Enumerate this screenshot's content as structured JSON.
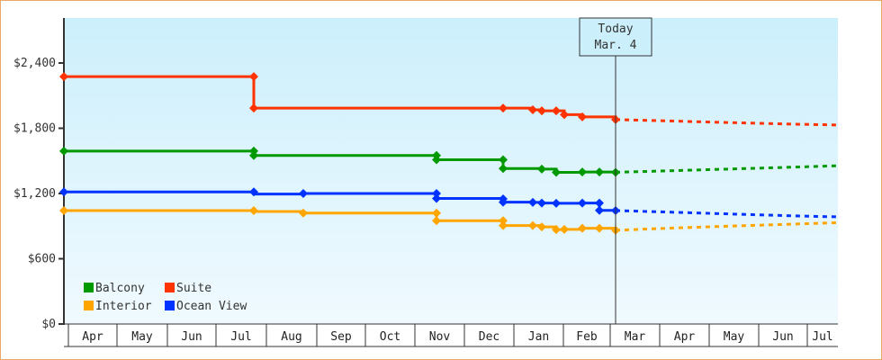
{
  "chart_data": {
    "type": "line",
    "title": "",
    "xlabel": "",
    "ylabel": "",
    "ylim": [
      0,
      2880
    ],
    "yticks": [
      {
        "value": 0,
        "label": "$0"
      },
      {
        "value": 600,
        "label": "$600"
      },
      {
        "value": 1200,
        "label": "$1,200"
      },
      {
        "value": 1800,
        "label": "$1,800"
      },
      {
        "value": 2400,
        "label": "$2,400"
      }
    ],
    "months": [
      "Apr",
      "May",
      "Jun",
      "Jul",
      "Aug",
      "Sep",
      "Oct",
      "Nov",
      "Dec",
      "Jan",
      "Feb",
      "Mar",
      "Apr",
      "May",
      "Jun",
      "Jul"
    ],
    "today_marker": {
      "line1": "Today",
      "line2": "Mar. 4"
    },
    "legend": [
      {
        "name": "Balcony",
        "color": "#009900"
      },
      {
        "name": "Suite",
        "color": "#FF3300"
      },
      {
        "name": "Interior",
        "color": "#FFA500"
      },
      {
        "name": "Ocean View",
        "color": "#0033FF"
      }
    ],
    "series": [
      {
        "name": "Suite",
        "color": "#FF3300",
        "points": [
          [
            71,
            2275
          ],
          [
            282,
            2275
          ],
          [
            282,
            1985
          ],
          [
            559,
            1985
          ],
          [
            592,
            1970
          ],
          [
            602,
            1960
          ],
          [
            618,
            1960
          ],
          [
            627,
            1925
          ],
          [
            647,
            1905
          ],
          [
            684,
            1880
          ]
        ],
        "forecast": [
          [
            684,
            1880
          ],
          [
            740,
            1868
          ],
          [
            810,
            1852
          ],
          [
            880,
            1838
          ],
          [
            931,
            1830
          ]
        ]
      },
      {
        "name": "Balcony",
        "color": "#009900",
        "points": [
          [
            71,
            1590
          ],
          [
            282,
            1590
          ],
          [
            282,
            1550
          ],
          [
            485,
            1550
          ],
          [
            485,
            1510
          ],
          [
            559,
            1510
          ],
          [
            559,
            1430
          ],
          [
            602,
            1425
          ],
          [
            618,
            1395
          ],
          [
            647,
            1398
          ],
          [
            666,
            1398
          ],
          [
            684,
            1395
          ]
        ],
        "forecast": [
          [
            684,
            1395
          ],
          [
            740,
            1408
          ],
          [
            810,
            1425
          ],
          [
            880,
            1442
          ],
          [
            931,
            1455
          ]
        ]
      },
      {
        "name": "Ocean View",
        "color": "#0033FF",
        "points": [
          [
            71,
            1215
          ],
          [
            282,
            1215
          ],
          [
            282,
            1195
          ],
          [
            337,
            1200
          ],
          [
            485,
            1200
          ],
          [
            485,
            1155
          ],
          [
            559,
            1150
          ],
          [
            559,
            1120
          ],
          [
            592,
            1118
          ],
          [
            602,
            1112
          ],
          [
            618,
            1110
          ],
          [
            647,
            1112
          ],
          [
            666,
            1112
          ],
          [
            666,
            1045
          ],
          [
            684,
            1043
          ]
        ],
        "forecast": [
          [
            684,
            1043
          ],
          [
            740,
            1030
          ],
          [
            810,
            1012
          ],
          [
            880,
            995
          ],
          [
            931,
            985
          ]
        ]
      },
      {
        "name": "Interior",
        "color": "#FFA500",
        "points": [
          [
            71,
            1043
          ],
          [
            282,
            1043
          ],
          [
            282,
            1035
          ],
          [
            337,
            1020
          ],
          [
            485,
            1020
          ],
          [
            485,
            950
          ],
          [
            559,
            950
          ],
          [
            559,
            905
          ],
          [
            592,
            905
          ],
          [
            602,
            893
          ],
          [
            618,
            868
          ],
          [
            627,
            870
          ],
          [
            647,
            880
          ],
          [
            666,
            880
          ],
          [
            684,
            862
          ]
        ],
        "forecast": [
          [
            684,
            862
          ],
          [
            740,
            880
          ],
          [
            810,
            900
          ],
          [
            880,
            918
          ],
          [
            931,
            932
          ]
        ]
      }
    ]
  }
}
